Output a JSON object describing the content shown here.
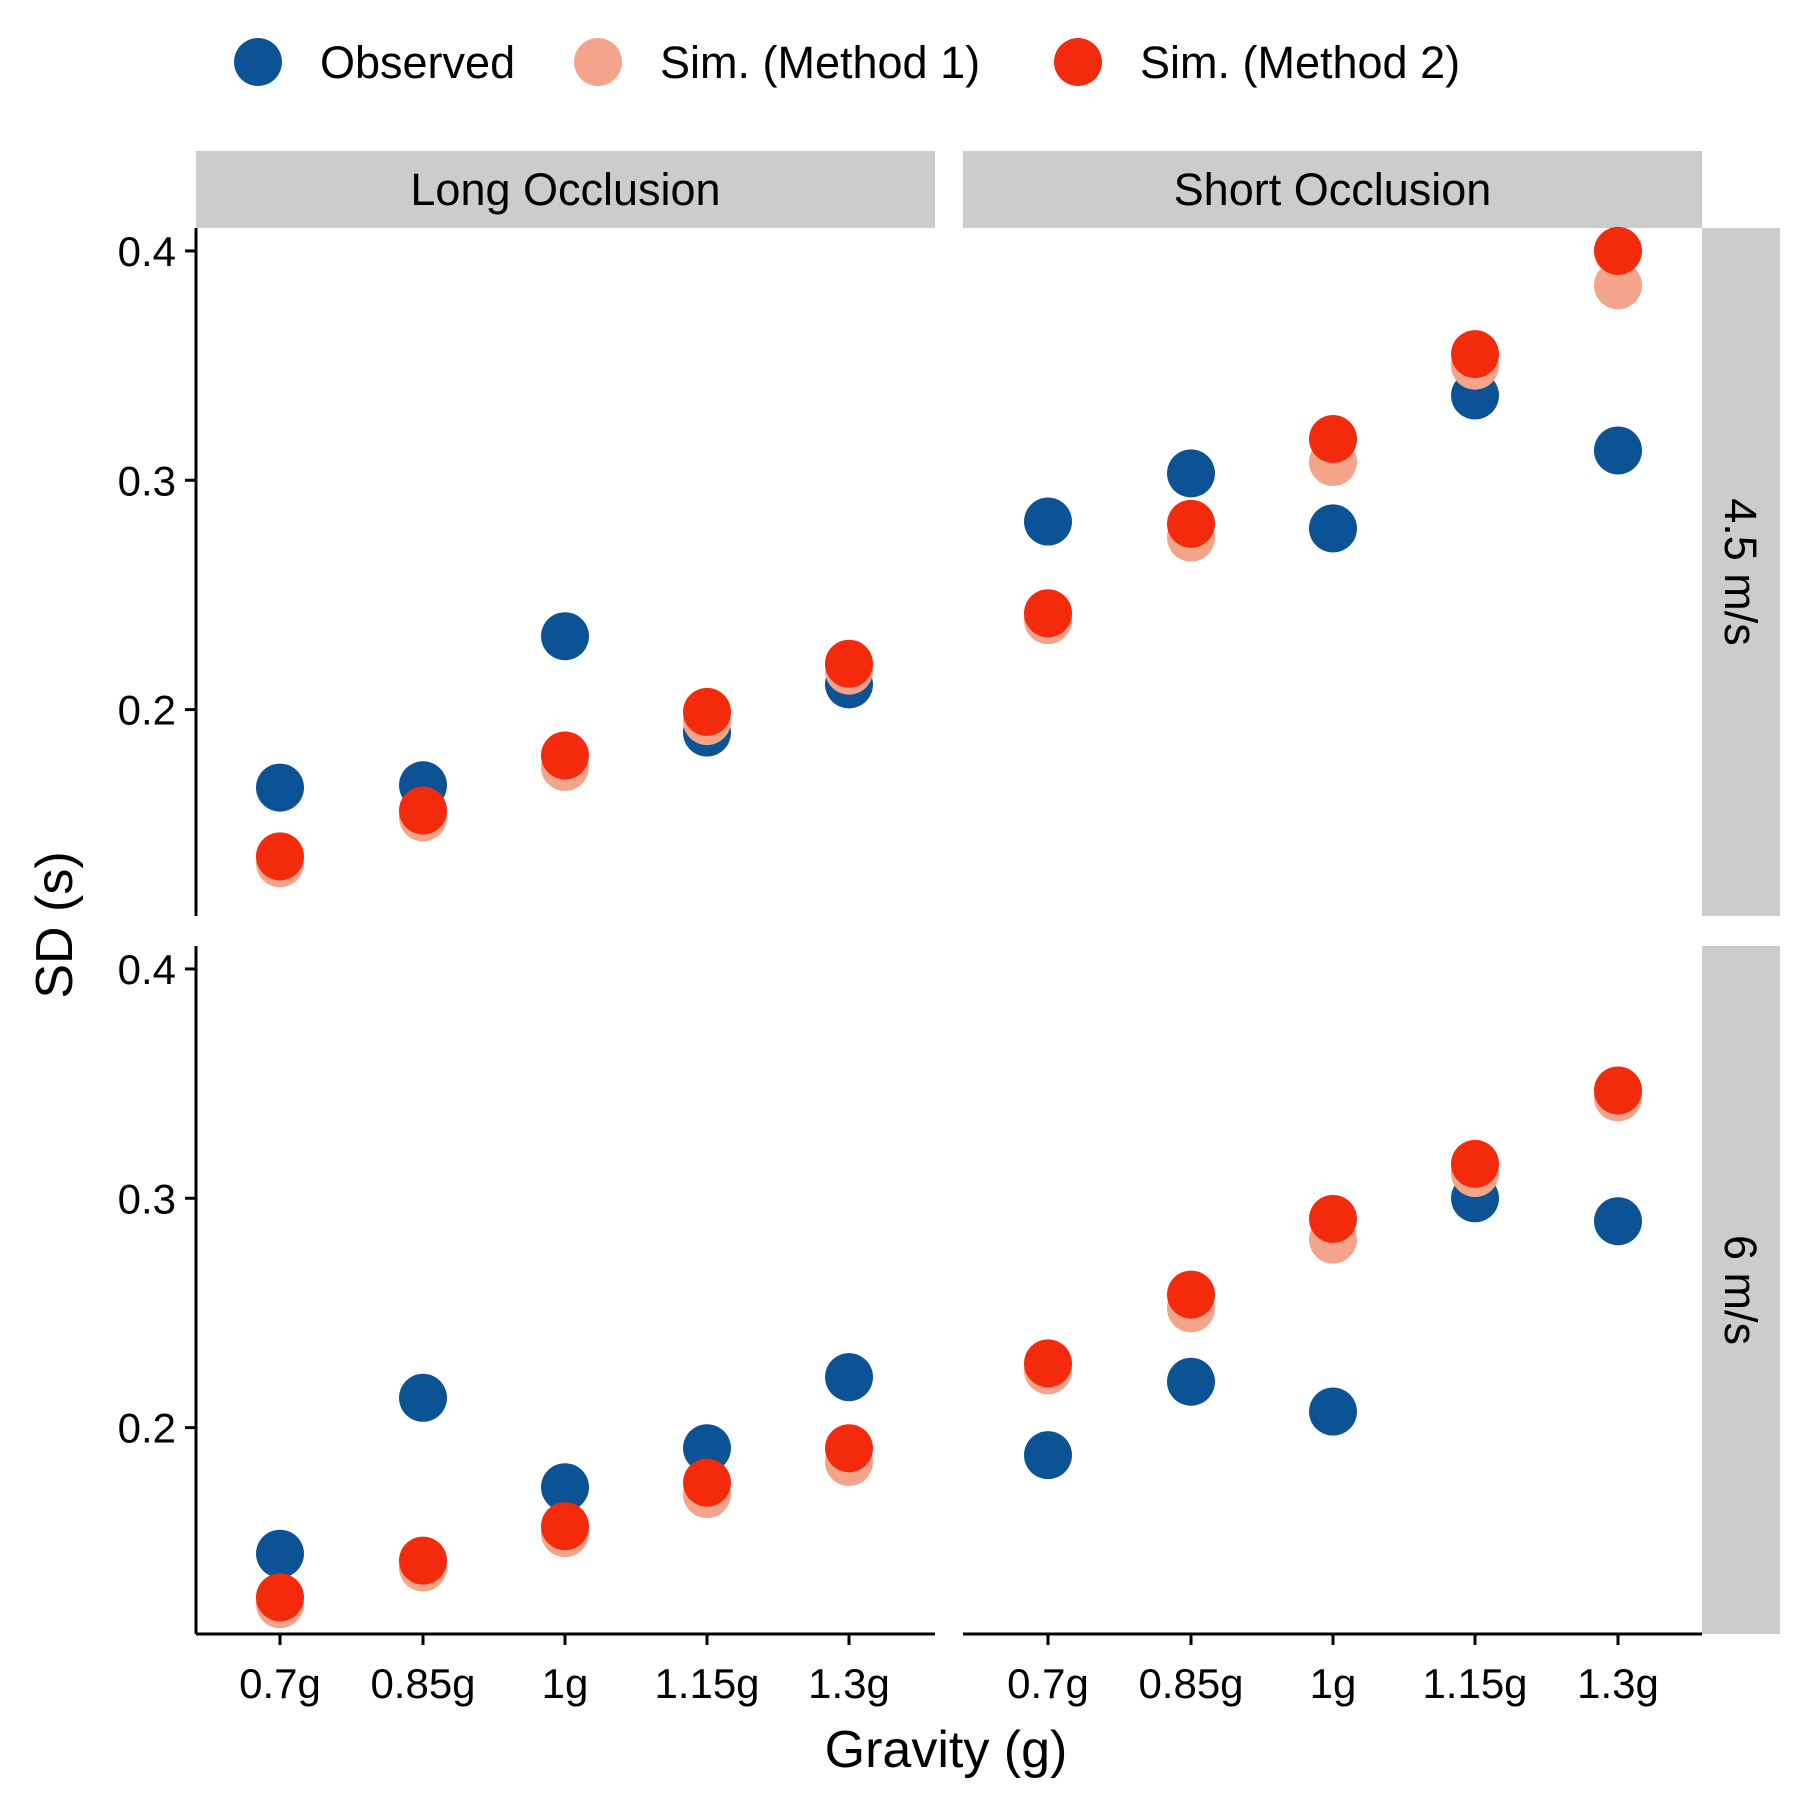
{
  "chart_data": {
    "type": "scatter",
    "xlabel": "Gravity (g)",
    "ylabel": "SD (s)",
    "categories": [
      "0.7g",
      "0.85g",
      "1g",
      "1.15g",
      "1.3g"
    ],
    "yticks": [
      0.2,
      0.3,
      0.4
    ],
    "ylim": [
      0.11,
      0.41
    ],
    "columns": [
      "Long Occlusion",
      "Short Occlusion"
    ],
    "rows": [
      "4.5 m/s",
      "6 m/s"
    ],
    "legend_position": "top",
    "grid": false,
    "series_styles": [
      {
        "name": "Observed",
        "color": "#0B5394"
      },
      {
        "name": "Sim. (Method 1)",
        "color": "#F4A48A"
      },
      {
        "name": "Sim. (Method 2)",
        "color": "#F42A0C"
      }
    ],
    "panels": [
      {
        "column": "Long Occlusion",
        "row": "4.5 m/s",
        "series": [
          {
            "name": "Observed",
            "values": [
              0.166,
              0.167,
              0.232,
              0.19,
              0.211
            ]
          },
          {
            "name": "Sim. (Method 1)",
            "values": [
              0.133,
              0.153,
              0.175,
              0.195,
              0.217
            ]
          },
          {
            "name": "Sim. (Method 2)",
            "values": [
              0.136,
              0.156,
              0.18,
              0.199,
              0.22
            ]
          }
        ]
      },
      {
        "column": "Short Occlusion",
        "row": "4.5 m/s",
        "series": [
          {
            "name": "Observed",
            "values": [
              0.282,
              0.303,
              0.279,
              0.337,
              0.313
            ]
          },
          {
            "name": "Sim. (Method 1)",
            "values": [
              0.239,
              0.275,
              0.308,
              0.35,
              0.385
            ]
          },
          {
            "name": "Sim. (Method 2)",
            "values": [
              0.242,
              0.281,
              0.318,
              0.355,
              0.4
            ]
          }
        ]
      },
      {
        "column": "Long Occlusion",
        "row": "6 m/s",
        "series": [
          {
            "name": "Observed",
            "values": [
              0.145,
              0.213,
              0.174,
              0.191,
              0.222
            ]
          },
          {
            "name": "Sim. (Method 1)",
            "values": [
              0.123,
              0.139,
              0.154,
              0.171,
              0.185
            ]
          },
          {
            "name": "Sim. (Method 2)",
            "values": [
              0.126,
              0.142,
              0.157,
              0.176,
              0.191
            ]
          }
        ]
      },
      {
        "column": "Short Occlusion",
        "row": "6 m/s",
        "series": [
          {
            "name": "Observed",
            "values": [
              0.188,
              0.22,
              0.207,
              0.3,
              0.29
            ]
          },
          {
            "name": "Sim. (Method 1)",
            "values": [
              0.225,
              0.252,
              0.282,
              0.311,
              0.344
            ]
          },
          {
            "name": "Sim. (Method 2)",
            "values": [
              0.228,
              0.258,
              0.291,
              0.315,
              0.347
            ]
          }
        ]
      }
    ]
  }
}
